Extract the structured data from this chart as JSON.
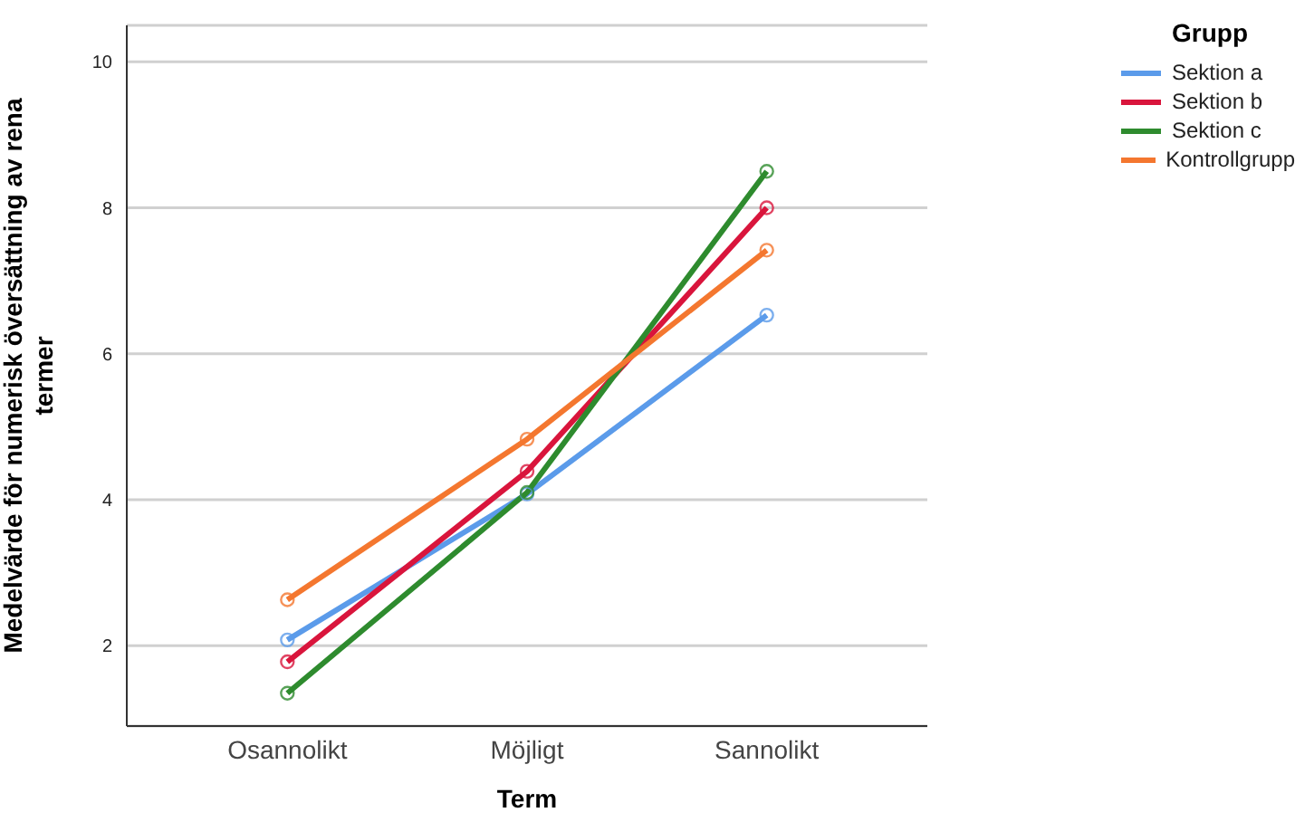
{
  "chart_data": {
    "type": "line",
    "xlabel": "Term",
    "ylabel": "Medelvärde för numerisk översättning av rena termer",
    "legend_title": "Grupp",
    "categories": [
      "Osannolikt",
      "Möjligt",
      "Sannolikt"
    ],
    "series": [
      {
        "name": "Sektion a",
        "color": "#5b9bea",
        "values": [
          2.08,
          4.08,
          6.53
        ]
      },
      {
        "name": "Sektion b",
        "color": "#d9153c",
        "values": [
          1.78,
          4.39,
          8.0
        ]
      },
      {
        "name": "Sektion c",
        "color": "#2e8b2e",
        "values": [
          1.35,
          4.1,
          8.5
        ]
      },
      {
        "name": "Kontrollgrupp",
        "color": "#f4772f",
        "values": [
          2.63,
          4.83,
          7.42
        ]
      }
    ],
    "ylim": [
      0.9,
      10.5
    ],
    "yticks": [
      2,
      4,
      6,
      8,
      10
    ],
    "grid": "y",
    "legend": "top right",
    "marker": "circle",
    "line_style": "solid"
  }
}
